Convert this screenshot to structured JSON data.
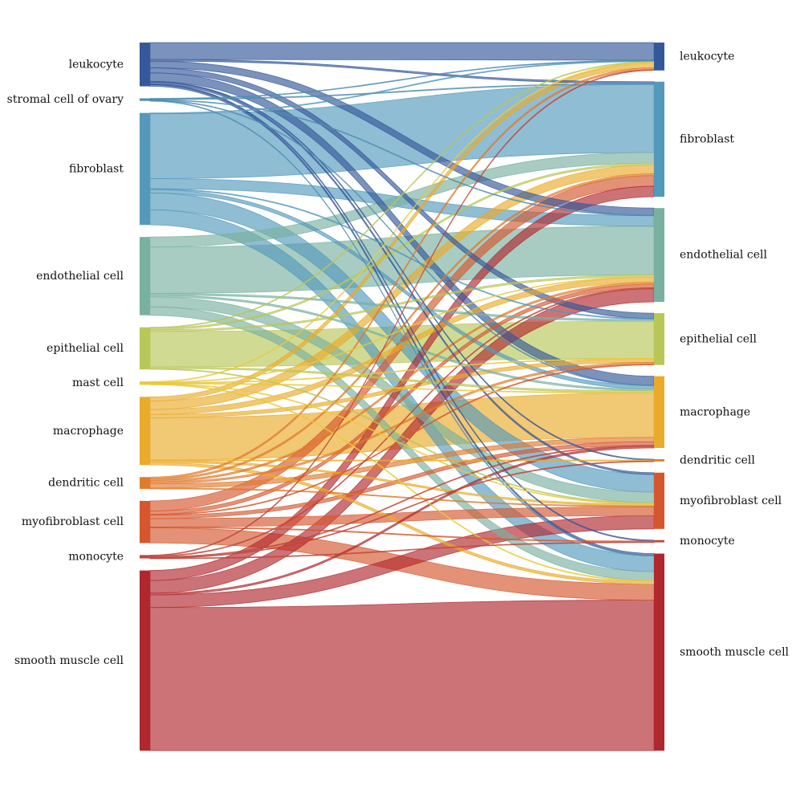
{
  "left_nodes": [
    {
      "id": "leukocyte",
      "label": "leukocyte",
      "color": "#34589a"
    },
    {
      "id": "stromal",
      "label": "stromal cell of ovary",
      "color": "#4f8db0"
    },
    {
      "id": "fibroblast",
      "label": "fibroblast",
      "color": "#5399bb"
    },
    {
      "id": "endothelial",
      "label": "endothelial cell",
      "color": "#79b1a0"
    },
    {
      "id": "epithelial",
      "label": "epithelial cell",
      "color": "#b9c658"
    },
    {
      "id": "mast",
      "label": "mast cell",
      "color": "#e9c93c"
    },
    {
      "id": "macrophage",
      "label": "macrophage",
      "color": "#eaab2a"
    },
    {
      "id": "dendritic",
      "label": "dendritic cell",
      "color": "#e07b2c"
    },
    {
      "id": "myofibroblast",
      "label": "myofibroblast cell",
      "color": "#d6572e"
    },
    {
      "id": "monocyte",
      "label": "monocyte",
      "color": "#c0453a"
    },
    {
      "id": "smooth",
      "label": "smooth muscle cell",
      "color": "#b0282e"
    }
  ],
  "right_nodes": [
    {
      "id": "leukocyte",
      "label": "leukocyte"
    },
    {
      "id": "fibroblast",
      "label": "fibroblast"
    },
    {
      "id": "endothelial",
      "label": "endothelial cell"
    },
    {
      "id": "epithelial",
      "label": "epithelial cell"
    },
    {
      "id": "macrophage",
      "label": "macrophage"
    },
    {
      "id": "dendritic",
      "label": "dendritic cell"
    },
    {
      "id": "myofibroblast",
      "label": "myofibroblast cell"
    },
    {
      "id": "monocyte",
      "label": "monocyte"
    },
    {
      "id": "smooth",
      "label": "smooth muscle cell"
    }
  ],
  "flows": [
    {
      "source": "leukocyte",
      "target": "leukocyte",
      "value": 20
    },
    {
      "source": "leukocyte",
      "target": "fibroblast",
      "value": 2
    },
    {
      "source": "leukocyte",
      "target": "endothelial",
      "value": 8
    },
    {
      "source": "leukocyte",
      "target": "epithelial",
      "value": 6
    },
    {
      "source": "leukocyte",
      "target": "macrophage",
      "value": 10
    },
    {
      "source": "leukocyte",
      "target": "dendritic",
      "value": 1
    },
    {
      "source": "leukocyte",
      "target": "myofibroblast",
      "value": 2
    },
    {
      "source": "leukocyte",
      "target": "monocyte",
      "value": 1
    },
    {
      "source": "leukocyte",
      "target": "smooth",
      "value": 2
    },
    {
      "source": "stromal",
      "target": "leukocyte",
      "value": 0.5
    },
    {
      "source": "stromal",
      "target": "fibroblast",
      "value": 1
    },
    {
      "source": "stromal",
      "target": "endothelial",
      "value": 0.5
    },
    {
      "source": "stromal",
      "target": "macrophage",
      "value": 0.5
    },
    {
      "source": "stromal",
      "target": "smooth",
      "value": 0.5
    },
    {
      "source": "fibroblast",
      "target": "leukocyte",
      "value": 1
    },
    {
      "source": "fibroblast",
      "target": "fibroblast",
      "value": 77
    },
    {
      "source": "fibroblast",
      "target": "endothelial",
      "value": 12
    },
    {
      "source": "fibroblast",
      "target": "epithelial",
      "value": 1
    },
    {
      "source": "fibroblast",
      "target": "macrophage",
      "value": 4
    },
    {
      "source": "fibroblast",
      "target": "myofibroblast",
      "value": 20
    },
    {
      "source": "fibroblast",
      "target": "smooth",
      "value": 18
    },
    {
      "source": "endothelial",
      "target": "fibroblast",
      "value": 12
    },
    {
      "source": "endothelial",
      "target": "endothelial",
      "value": 55
    },
    {
      "source": "endothelial",
      "target": "epithelial",
      "value": 2
    },
    {
      "source": "endothelial",
      "target": "macrophage",
      "value": 2
    },
    {
      "source": "endothelial",
      "target": "myofibroblast",
      "value": 12
    },
    {
      "source": "endothelial",
      "target": "smooth",
      "value": 10
    },
    {
      "source": "epithelial",
      "target": "leukocyte",
      "value": 1
    },
    {
      "source": "epithelial",
      "target": "fibroblast",
      "value": 2
    },
    {
      "source": "epithelial",
      "target": "endothelial",
      "value": 2
    },
    {
      "source": "epithelial",
      "target": "epithelial",
      "value": 42
    },
    {
      "source": "epithelial",
      "target": "macrophage",
      "value": 2
    },
    {
      "source": "epithelial",
      "target": "myofibroblast",
      "value": 1
    },
    {
      "source": "mast",
      "target": "leukocyte",
      "value": 1
    },
    {
      "source": "mast",
      "target": "endothelial",
      "value": 0.5
    },
    {
      "source": "mast",
      "target": "epithelial",
      "value": 0.5
    },
    {
      "source": "mast",
      "target": "macrophage",
      "value": 0.5
    },
    {
      "source": "mast",
      "target": "myofibroblast",
      "value": 0.5
    },
    {
      "source": "mast",
      "target": "smooth",
      "value": 1
    },
    {
      "source": "macrophage",
      "target": "leukocyte",
      "value": 5
    },
    {
      "source": "macrophage",
      "target": "fibroblast",
      "value": 10
    },
    {
      "source": "macrophage",
      "target": "endothelial",
      "value": 6
    },
    {
      "source": "macrophage",
      "target": "epithelial",
      "value": 4
    },
    {
      "source": "macrophage",
      "target": "macrophage",
      "value": 50
    },
    {
      "source": "macrophage",
      "target": "dendritic",
      "value": 1
    },
    {
      "source": "macrophage",
      "target": "myofibroblast",
      "value": 2
    },
    {
      "source": "macrophage",
      "target": "smooth",
      "value": 3
    },
    {
      "source": "dendritic",
      "target": "leukocyte",
      "value": 2
    },
    {
      "source": "dendritic",
      "target": "fibroblast",
      "value": 2
    },
    {
      "source": "dendritic",
      "target": "endothelial",
      "value": 2
    },
    {
      "source": "dendritic",
      "target": "epithelial",
      "value": 2
    },
    {
      "source": "dendritic",
      "target": "macrophage",
      "value": 5
    },
    {
      "source": "dendritic",
      "target": "myofibroblast",
      "value": 1
    },
    {
      "source": "myofibroblast",
      "target": "fibroblast",
      "value": 12
    },
    {
      "source": "myofibroblast",
      "target": "endothelial",
      "value": 4
    },
    {
      "source": "myofibroblast",
      "target": "epithelial",
      "value": 1
    },
    {
      "source": "myofibroblast",
      "target": "macrophage",
      "value": 4
    },
    {
      "source": "myofibroblast",
      "target": "myofibroblast",
      "value": 10
    },
    {
      "source": "myofibroblast",
      "target": "monocyte",
      "value": 1
    },
    {
      "source": "myofibroblast",
      "target": "smooth",
      "value": 18
    },
    {
      "source": "monocyte",
      "target": "leukocyte",
      "value": 1
    },
    {
      "source": "monocyte",
      "target": "endothelial",
      "value": 1
    },
    {
      "source": "monocyte",
      "target": "macrophage",
      "value": 1
    },
    {
      "source": "monocyte",
      "target": "dendritic",
      "value": 0.5
    },
    {
      "source": "monocyte",
      "target": "monocyte",
      "value": 0.5
    },
    {
      "source": "smooth",
      "target": "fibroblast",
      "value": 12
    },
    {
      "source": "smooth",
      "target": "endothelial",
      "value": 15
    },
    {
      "source": "smooth",
      "target": "macrophage",
      "value": 2
    },
    {
      "source": "smooth",
      "target": "myofibroblast",
      "value": 15
    },
    {
      "source": "smooth",
      "target": "smooth",
      "value": 170
    }
  ]
}
